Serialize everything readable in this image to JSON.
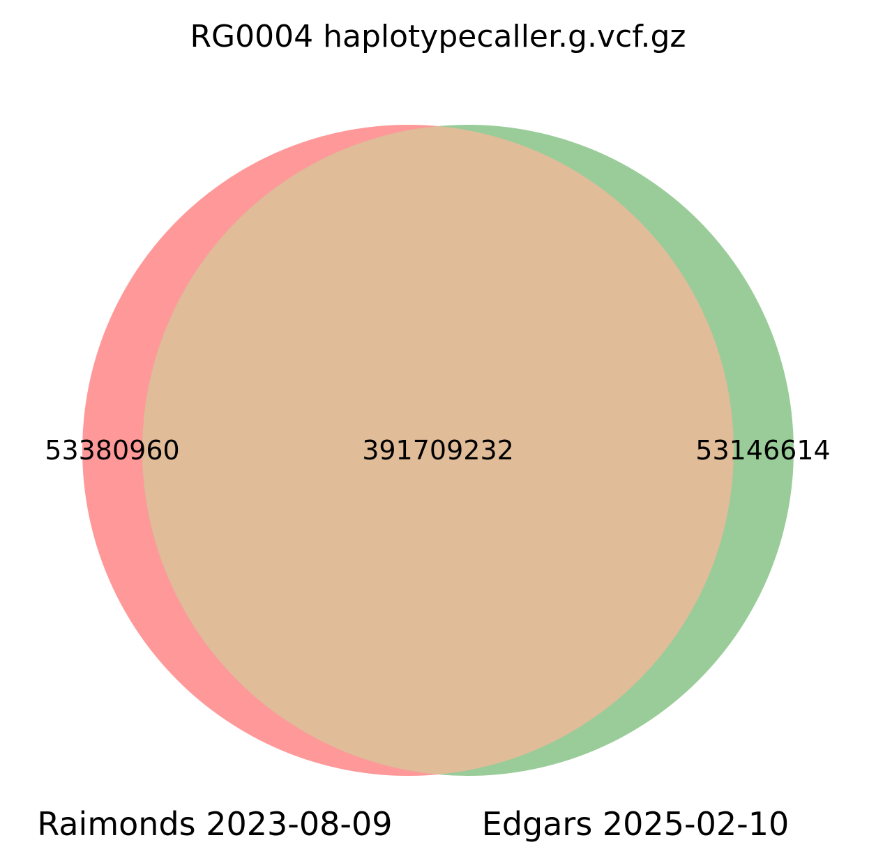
{
  "title": "RG0004 haplotypecaller.g.vcf.gz",
  "sets": [
    {
      "name": "Raimonds 2023-08-09",
      "only_count": "53380960",
      "color": "#ff9999"
    },
    {
      "name": "Edgars 2025-02-10",
      "only_count": "53146614",
      "color": "#99cc99"
    }
  ],
  "intersection": {
    "count": "391709232",
    "color": "#e0bc99"
  },
  "chart_data": {
    "type": "venn",
    "title": "RG0004 haplotypecaller.g.vcf.gz",
    "sets": [
      "Raimonds 2023-08-09",
      "Edgars 2025-02-10"
    ],
    "regions": [
      {
        "sets": [
          "Raimonds 2023-08-09"
        ],
        "value": 53380960
      },
      {
        "sets": [
          "Raimonds 2023-08-09",
          "Edgars 2025-02-10"
        ],
        "value": 391709232
      },
      {
        "sets": [
          "Edgars 2025-02-10"
        ],
        "value": 53146614
      }
    ]
  }
}
